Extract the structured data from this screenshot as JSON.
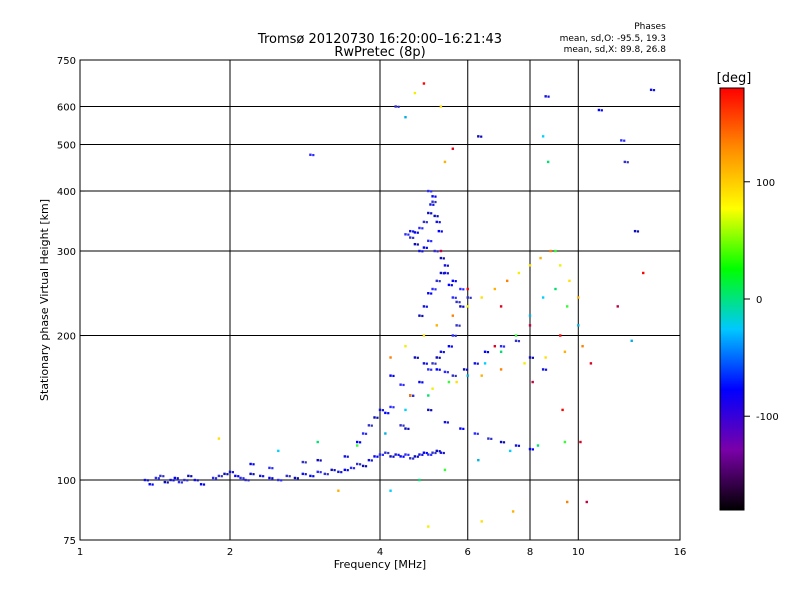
{
  "chart_data": {
    "type": "scatter",
    "title_line1": "Tromsø 20120730 16:20:00–16:21:43",
    "title_line2": "RwPretec (8p)",
    "stats": {
      "heading": "Phases",
      "line1": "mean, sd,O: -95.5, 19.3",
      "line2": "mean, sd,X:  89.8, 26.8"
    },
    "xlabel": "Frequency [MHz]",
    "ylabel": "Stationary phase Virtual Height [km]",
    "x_scale": "log",
    "y_scale": "log",
    "xlim": [
      1,
      16
    ],
    "ylim": [
      75,
      750
    ],
    "x_ticks": [
      1,
      2,
      4,
      6,
      8,
      10,
      16
    ],
    "y_ticks": [
      75,
      100,
      200,
      300,
      400,
      500,
      600,
      750
    ],
    "x_gridlines": [
      2,
      4,
      6,
      8,
      10
    ],
    "y_gridlines": [
      100,
      200,
      300,
      400,
      500,
      600
    ],
    "colorbar": {
      "label": "[deg]",
      "min": -180,
      "max": 180,
      "ticks": [
        100,
        0,
        -100
      ],
      "colormap": "rainbow",
      "colors": [
        "#000000",
        "#7a00a8",
        "#0000ff",
        "#00c8ff",
        "#00ff00",
        "#ffff00",
        "#ff8c00",
        "#ff0000"
      ]
    },
    "series_approx": [
      {
        "phase_group": "blue (~-100 deg)",
        "points": [
          [
            1.35,
            100
          ],
          [
            1.38,
            98
          ],
          [
            1.42,
            101
          ],
          [
            1.45,
            102
          ],
          [
            1.48,
            99
          ],
          [
            1.52,
            100
          ],
          [
            1.55,
            101
          ],
          [
            1.58,
            99
          ],
          [
            1.62,
            100
          ],
          [
            1.65,
            102
          ],
          [
            1.7,
            100
          ],
          [
            1.75,
            98
          ],
          [
            1.85,
            101
          ],
          [
            1.9,
            102
          ],
          [
            1.95,
            103
          ],
          [
            2.0,
            104
          ],
          [
            2.05,
            102
          ],
          [
            2.1,
            101
          ],
          [
            2.15,
            100
          ],
          [
            2.2,
            103
          ],
          [
            2.3,
            102
          ],
          [
            2.4,
            101
          ],
          [
            2.5,
            100
          ],
          [
            2.6,
            102
          ],
          [
            2.7,
            101
          ],
          [
            2.8,
            103
          ],
          [
            2.9,
            102
          ],
          [
            3.0,
            104
          ],
          [
            3.1,
            103
          ],
          [
            3.2,
            105
          ],
          [
            3.3,
            104
          ],
          [
            3.4,
            105
          ],
          [
            3.5,
            106
          ],
          [
            3.6,
            108
          ],
          [
            3.7,
            107
          ],
          [
            3.8,
            110
          ],
          [
            3.9,
            112
          ],
          [
            4.0,
            113
          ],
          [
            4.1,
            114
          ],
          [
            4.2,
            112
          ],
          [
            4.3,
            113
          ],
          [
            4.4,
            112
          ],
          [
            4.5,
            113
          ],
          [
            4.6,
            111
          ],
          [
            4.7,
            112
          ],
          [
            4.8,
            113
          ],
          [
            4.9,
            114
          ],
          [
            5.0,
            113
          ],
          [
            5.1,
            114
          ],
          [
            5.2,
            115
          ],
          [
            5.3,
            114
          ],
          [
            2.2,
            108
          ],
          [
            2.4,
            106
          ],
          [
            2.8,
            109
          ],
          [
            3.0,
            110
          ],
          [
            3.4,
            112
          ],
          [
            3.6,
            120
          ],
          [
            3.7,
            125
          ],
          [
            3.8,
            130
          ],
          [
            3.9,
            135
          ],
          [
            4.0,
            140
          ],
          [
            4.1,
            138
          ],
          [
            4.2,
            142
          ],
          [
            4.4,
            130
          ],
          [
            4.5,
            128
          ],
          [
            4.6,
            150
          ],
          [
            4.8,
            160
          ],
          [
            5.0,
            170
          ],
          [
            5.1,
            175
          ],
          [
            5.2,
            180
          ],
          [
            5.3,
            185
          ],
          [
            5.5,
            190
          ],
          [
            5.6,
            200
          ],
          [
            5.7,
            210
          ],
          [
            4.8,
            220
          ],
          [
            4.9,
            230
          ],
          [
            5.0,
            245
          ],
          [
            5.1,
            250
          ],
          [
            5.2,
            260
          ],
          [
            5.3,
            270
          ],
          [
            5.4,
            280
          ],
          [
            5.5,
            255
          ],
          [
            5.6,
            240
          ],
          [
            5.7,
            235
          ],
          [
            5.8,
            230
          ],
          [
            4.6,
            330
          ],
          [
            4.7,
            328
          ],
          [
            4.8,
            335
          ],
          [
            4.9,
            345
          ],
          [
            5.0,
            360
          ],
          [
            5.05,
            375
          ],
          [
            5.1,
            390
          ],
          [
            5.0,
            400
          ],
          [
            5.1,
            380
          ],
          [
            5.15,
            355
          ],
          [
            5.2,
            345
          ],
          [
            5.25,
            330
          ],
          [
            4.5,
            325
          ],
          [
            4.6,
            320
          ],
          [
            4.7,
            310
          ],
          [
            4.8,
            300
          ],
          [
            4.9,
            305
          ],
          [
            5.0,
            315
          ],
          [
            5.15,
            300
          ],
          [
            5.3,
            290
          ],
          [
            5.4,
            270
          ],
          [
            5.6,
            260
          ],
          [
            5.8,
            250
          ],
          [
            6.0,
            240
          ],
          [
            4.7,
            180
          ],
          [
            4.9,
            175
          ],
          [
            5.2,
            170
          ],
          [
            5.4,
            168
          ],
          [
            5.6,
            165
          ],
          [
            5.9,
            170
          ],
          [
            6.2,
            175
          ],
          [
            6.5,
            185
          ],
          [
            7.0,
            190
          ],
          [
            7.5,
            195
          ],
          [
            8.0,
            180
          ],
          [
            8.5,
            170
          ],
          [
            4.2,
            165
          ],
          [
            4.4,
            158
          ],
          [
            4.6,
            150
          ],
          [
            5.0,
            140
          ],
          [
            5.4,
            132
          ],
          [
            5.8,
            128
          ],
          [
            6.2,
            125
          ],
          [
            6.6,
            122
          ],
          [
            7.0,
            120
          ],
          [
            7.5,
            118
          ],
          [
            8.0,
            116
          ],
          [
            2.9,
            476
          ],
          [
            4.3,
            600
          ],
          [
            6.3,
            520
          ],
          [
            8.6,
            630
          ],
          [
            11.0,
            590
          ],
          [
            12.2,
            510
          ],
          [
            12.4,
            460
          ],
          [
            13.0,
            330
          ],
          [
            14.0,
            650
          ]
        ]
      },
      {
        "phase_group": "cyan/green (~0 deg)",
        "points": [
          [
            2.5,
            115
          ],
          [
            3.0,
            120
          ],
          [
            3.6,
            118
          ],
          [
            4.1,
            125
          ],
          [
            4.5,
            140
          ],
          [
            5.0,
            150
          ],
          [
            5.5,
            160
          ],
          [
            6.0,
            165
          ],
          [
            6.5,
            175
          ],
          [
            7.0,
            185
          ],
          [
            7.5,
            200
          ],
          [
            8.0,
            220
          ],
          [
            8.5,
            240
          ],
          [
            9.0,
            250
          ],
          [
            9.5,
            230
          ],
          [
            10.0,
            210
          ],
          [
            4.2,
            95
          ],
          [
            4.8,
            100
          ],
          [
            5.4,
            105
          ],
          [
            6.3,
            110
          ],
          [
            7.3,
            115
          ],
          [
            8.3,
            118
          ],
          [
            9.4,
            120
          ],
          [
            4.5,
            570
          ],
          [
            8.5,
            520
          ],
          [
            8.7,
            460
          ],
          [
            9.0,
            300
          ],
          [
            12.8,
            195
          ]
        ]
      },
      {
        "phase_group": "yellow/orange (~+100 deg)",
        "points": [
          [
            1.9,
            122
          ],
          [
            3.3,
            95
          ],
          [
            4.2,
            180
          ],
          [
            4.5,
            190
          ],
          [
            4.9,
            200
          ],
          [
            5.2,
            210
          ],
          [
            5.6,
            220
          ],
          [
            6.0,
            230
          ],
          [
            6.4,
            240
          ],
          [
            6.8,
            250
          ],
          [
            7.2,
            260
          ],
          [
            7.6,
            270
          ],
          [
            8.0,
            280
          ],
          [
            8.4,
            290
          ],
          [
            8.8,
            300
          ],
          [
            9.2,
            280
          ],
          [
            9.6,
            260
          ],
          [
            10.0,
            240
          ],
          [
            4.6,
            150
          ],
          [
            5.1,
            155
          ],
          [
            5.7,
            160
          ],
          [
            6.4,
            165
          ],
          [
            7.0,
            170
          ],
          [
            7.8,
            175
          ],
          [
            8.6,
            180
          ],
          [
            9.4,
            185
          ],
          [
            10.2,
            190
          ],
          [
            5.0,
            80
          ],
          [
            6.4,
            82
          ],
          [
            7.4,
            86
          ],
          [
            9.5,
            90
          ],
          [
            4.7,
            640
          ],
          [
            5.3,
            600
          ],
          [
            5.4,
            460
          ]
        ]
      },
      {
        "phase_group": "red (~+170 deg)",
        "points": [
          [
            4.9,
            670
          ],
          [
            5.6,
            490
          ],
          [
            5.3,
            300
          ],
          [
            6.0,
            250
          ],
          [
            7.0,
            230
          ],
          [
            8.0,
            210
          ],
          [
            9.2,
            200
          ],
          [
            10.6,
            175
          ],
          [
            12.0,
            230
          ],
          [
            13.5,
            270
          ],
          [
            6.8,
            190
          ],
          [
            8.1,
            160
          ],
          [
            9.3,
            140
          ],
          [
            10.1,
            120
          ],
          [
            10.4,
            90
          ]
        ]
      }
    ]
  }
}
